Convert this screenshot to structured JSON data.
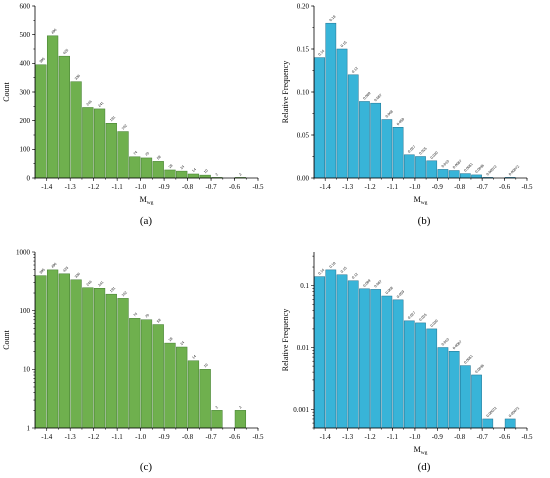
{
  "chart_data": [
    {
      "id": "a",
      "type": "bar",
      "panel_label": "(a)",
      "xlabel": "M",
      "xlabel_sub": "wg",
      "ylabel": "Count",
      "xlim": [
        -1.45,
        -0.5
      ],
      "ylim": [
        0,
        600
      ],
      "xticks": [
        "-1.4",
        "-1.3",
        "-1.2",
        "-1.1",
        "-1.0",
        "-0.9",
        "-0.8",
        "-0.7",
        "-0.6",
        "-0.5"
      ],
      "yticks": [
        "0",
        "100",
        "200",
        "300",
        "400",
        "500",
        "600"
      ],
      "bar_color": "#6fb04e",
      "bar_edge": "#3f7a2c",
      "bin_width": 0.05,
      "x": [
        -1.425,
        -1.375,
        -1.325,
        -1.275,
        -1.225,
        -1.175,
        -1.125,
        -1.075,
        -1.025,
        -0.975,
        -0.925,
        -0.875,
        -0.825,
        -0.775,
        -0.725,
        -0.675,
        -0.575
      ],
      "values": [
        395,
        496,
        425,
        336,
        246,
        241,
        191,
        162,
        74,
        70,
        58,
        28,
        24,
        14,
        10,
        2,
        2
      ],
      "labels": [
        "395",
        "496",
        "425",
        "336",
        "246",
        "241",
        "191",
        "162",
        "74",
        "70",
        "58",
        "28",
        "24",
        "14",
        "10",
        "2",
        "2"
      ],
      "scale": "linear"
    },
    {
      "id": "b",
      "type": "bar",
      "panel_label": "(b)",
      "xlabel": "M",
      "xlabel_sub": "wg",
      "ylabel": "Relative Frequency",
      "xlim": [
        -1.45,
        -0.5
      ],
      "ylim": [
        0,
        0.2
      ],
      "xticks": [
        "-1.4",
        "-1.3",
        "-1.2",
        "-1.1",
        "-1.0",
        "-0.9",
        "-0.8",
        "-0.7",
        "-0.6",
        "-0.5"
      ],
      "yticks": [
        "0.00",
        "0.05",
        "0.10",
        "0.15",
        "0.20"
      ],
      "bar_color": "#38b4d8",
      "bar_edge": "#1f6f8e",
      "bin_width": 0.05,
      "x": [
        -1.425,
        -1.375,
        -1.325,
        -1.275,
        -1.225,
        -1.175,
        -1.125,
        -1.075,
        -1.025,
        -0.975,
        -0.925,
        -0.875,
        -0.825,
        -0.775,
        -0.725,
        -0.675,
        -0.575
      ],
      "values": [
        0.14,
        0.18,
        0.15,
        0.12,
        0.089,
        0.087,
        0.068,
        0.059,
        0.027,
        0.025,
        0.02,
        0.01,
        0.0087,
        0.0051,
        0.0036,
        0.0007,
        0.0007
      ],
      "labels": [
        "0.14",
        "0.18",
        "0.15",
        "0.12",
        "0.089",
        "0.087",
        "0.068",
        "0.059",
        "0.027",
        "0.025",
        "0.020",
        "0.010",
        "0.0087",
        "0.0051",
        "0.0036",
        "0.00072",
        "0.00072"
      ],
      "scale": "linear"
    },
    {
      "id": "c",
      "type": "bar",
      "panel_label": "(c)",
      "xlabel": "",
      "xlabel_sub": "",
      "ylabel": "Count",
      "xlim": [
        -1.45,
        -0.5
      ],
      "ylim": [
        1,
        1000
      ],
      "xticks": [
        "-1.4",
        "-1.3",
        "-1.2",
        "-1.1",
        "-1.0",
        "-0.9",
        "-0.8",
        "-0.7",
        "-0.6",
        "-0.5"
      ],
      "yticks": [
        "1",
        "10",
        "100",
        "1000"
      ],
      "bar_color": "#6fb04e",
      "bar_edge": "#3f7a2c",
      "bin_width": 0.05,
      "x": [
        -1.425,
        -1.375,
        -1.325,
        -1.275,
        -1.225,
        -1.175,
        -1.125,
        -1.075,
        -1.025,
        -0.975,
        -0.925,
        -0.875,
        -0.825,
        -0.775,
        -0.725,
        -0.675,
        -0.575
      ],
      "values": [
        395,
        496,
        425,
        336,
        246,
        241,
        191,
        162,
        74,
        70,
        58,
        28,
        24,
        14,
        10,
        2,
        2
      ],
      "labels": [
        "395",
        "496",
        "425",
        "336",
        "246",
        "241",
        "191",
        "162",
        "74",
        "70",
        "58",
        "28",
        "24",
        "14",
        "10",
        "2",
        "2"
      ],
      "scale": "log"
    },
    {
      "id": "d",
      "type": "bar",
      "panel_label": "(d)",
      "xlabel": "M",
      "xlabel_sub": "wg",
      "ylabel": "Relative Frequency",
      "xlim": [
        -1.45,
        -0.5
      ],
      "ylim": [
        0.0005,
        0.35
      ],
      "xticks": [
        "-1.4",
        "-1.3",
        "-1.2",
        "-1.1",
        "-1.0",
        "-0.9",
        "-0.8",
        "-0.7",
        "-0.6",
        "-0.5"
      ],
      "yticks": [
        "0.001",
        "0.01",
        "0.1"
      ],
      "bar_color": "#38b4d8",
      "bar_edge": "#1f6f8e",
      "bin_width": 0.05,
      "x": [
        -1.425,
        -1.375,
        -1.325,
        -1.275,
        -1.225,
        -1.175,
        -1.125,
        -1.075,
        -1.025,
        -0.975,
        -0.925,
        -0.875,
        -0.825,
        -0.775,
        -0.725,
        -0.675,
        -0.575
      ],
      "values": [
        0.14,
        0.18,
        0.15,
        0.12,
        0.089,
        0.087,
        0.068,
        0.059,
        0.027,
        0.025,
        0.02,
        0.01,
        0.0087,
        0.0051,
        0.0036,
        0.0007,
        0.0007
      ],
      "labels": [
        "0.14",
        "0.18",
        "0.15",
        "0.12",
        "0.089",
        "0.087",
        "0.068",
        "0.059",
        "0.027",
        "0.025",
        "0.020",
        "0.010",
        "0.0087",
        "0.0051",
        "0.0036",
        "0.00072",
        "0.00072"
      ],
      "scale": "log"
    }
  ]
}
